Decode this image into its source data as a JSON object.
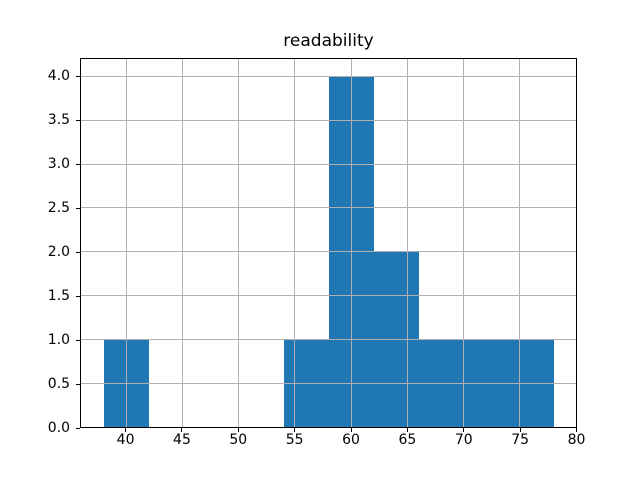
{
  "chart_data": {
    "type": "bar",
    "subtype": "histogram",
    "title": "readability",
    "xlabel": "",
    "ylabel": "",
    "bin_edges": [
      38,
      42,
      46,
      50,
      54,
      58,
      62,
      66,
      70,
      74,
      78
    ],
    "counts": [
      1,
      0,
      0,
      0,
      1,
      4,
      2,
      1,
      1,
      1
    ],
    "xlim": [
      36,
      80
    ],
    "ylim": [
      0,
      4.2
    ],
    "x_ticks": [
      40,
      45,
      50,
      55,
      60,
      65,
      70,
      75,
      80
    ],
    "x_tick_labels": [
      "40",
      "45",
      "50",
      "55",
      "60",
      "65",
      "70",
      "75",
      "80"
    ],
    "y_ticks": [
      0,
      0.5,
      1,
      1.5,
      2,
      2.5,
      3,
      3.5,
      4
    ],
    "y_tick_labels": [
      "0.0",
      "0.5",
      "1.0",
      "1.5",
      "2.0",
      "2.5",
      "3.0",
      "3.5",
      "4.0"
    ],
    "grid": true,
    "grid_above_bars": true,
    "legend_visible": false,
    "colors": {
      "bar": "#1f77b4",
      "grid": "#b0b0b0",
      "spine": "#000000",
      "text": "#000000",
      "background": "#ffffff"
    }
  }
}
